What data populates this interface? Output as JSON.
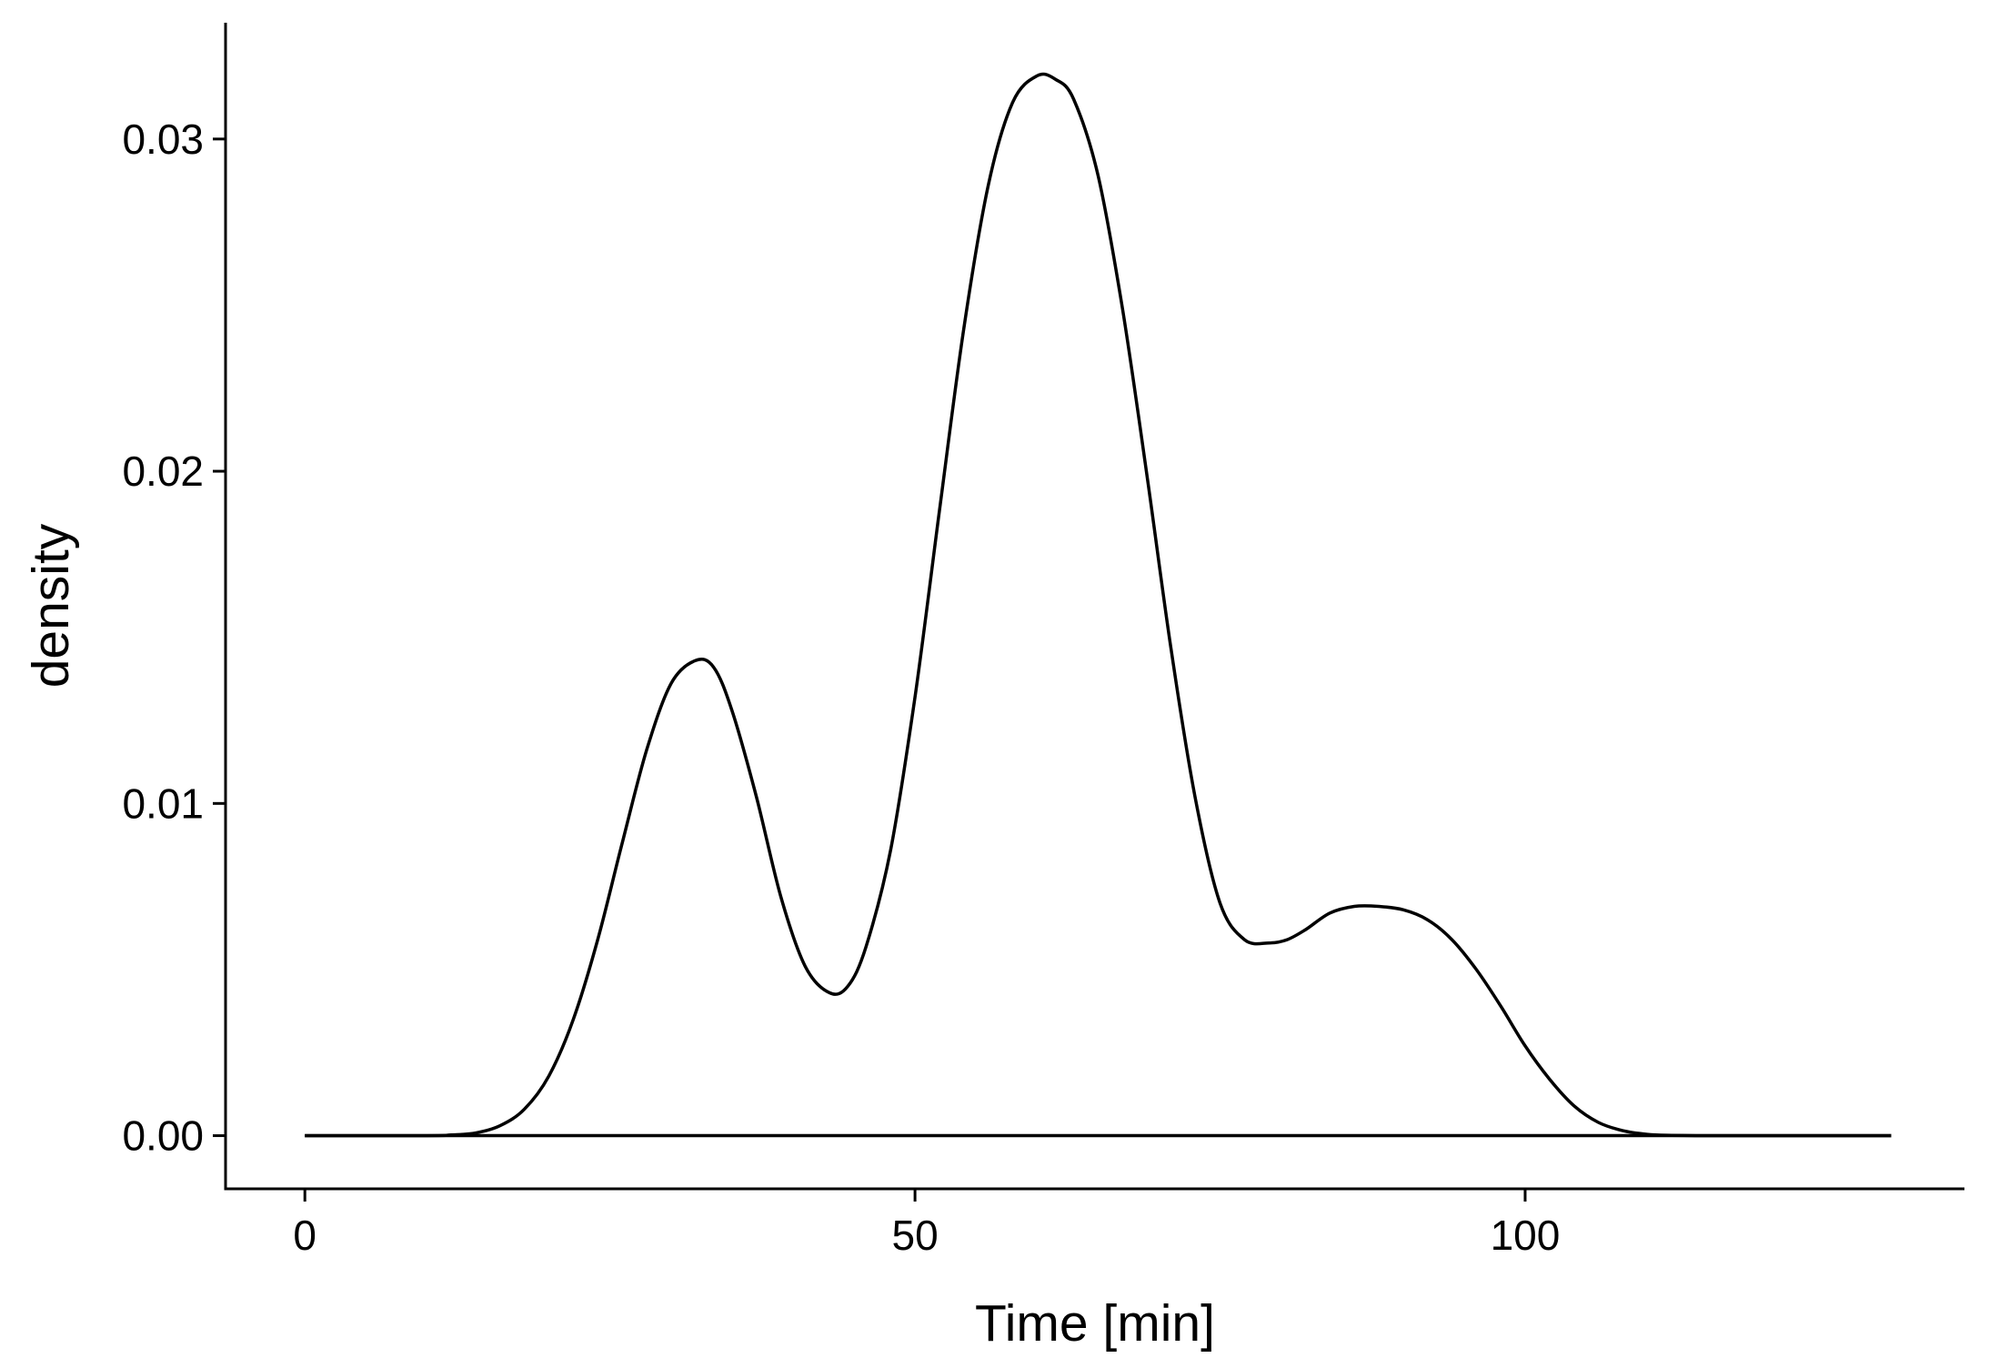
{
  "chart_data": {
    "type": "line",
    "title": "",
    "xlabel": "Time [min]",
    "ylabel": "density",
    "xlim": [
      -6.5,
      136
    ],
    "ylim": [
      -0.0016,
      0.0335
    ],
    "x_ticks": [
      {
        "value": 0,
        "label": "0"
      },
      {
        "value": 50,
        "label": "50"
      },
      {
        "value": 100,
        "label": "100"
      }
    ],
    "y_ticks": [
      {
        "value": 0.0,
        "label": "0.00"
      },
      {
        "value": 0.01,
        "label": "0.01"
      },
      {
        "value": 0.02,
        "label": "0.02"
      },
      {
        "value": 0.03,
        "label": "0.03"
      }
    ],
    "grid": false,
    "legend": "none",
    "line_color": "#000000",
    "series": [
      {
        "x": [
          0,
          10,
          12,
          14,
          16,
          18,
          20,
          22,
          24,
          26,
          28,
          30,
          32,
          33.5,
          35,
          37,
          39,
          41,
          43,
          44.5,
          46,
          48,
          50,
          52,
          54,
          56,
          58,
          60,
          61.5,
          63,
          65,
          67,
          69,
          71,
          73,
          75,
          77,
          79,
          80.5,
          82,
          84,
          86,
          88,
          90,
          92,
          94,
          96,
          98,
          100,
          102,
          104,
          106,
          108,
          110,
          112,
          114,
          116,
          120,
          130
        ],
        "y": [
          0.0,
          0.0,
          2e-05,
          8e-05,
          0.0003,
          0.0008,
          0.0018,
          0.0035,
          0.0059,
          0.0088,
          0.0116,
          0.0136,
          0.0143,
          0.0141,
          0.0128,
          0.0102,
          0.0072,
          0.0051,
          0.0043,
          0.0045,
          0.0057,
          0.0086,
          0.0132,
          0.0188,
          0.0243,
          0.0286,
          0.0311,
          0.0319,
          0.0318,
          0.0312,
          0.0289,
          0.0249,
          0.0199,
          0.0146,
          0.0101,
          0.007,
          0.0059,
          0.0058,
          0.0059,
          0.0062,
          0.0067,
          0.0069,
          0.0069,
          0.0068,
          0.0065,
          0.0059,
          0.005,
          0.0039,
          0.0027,
          0.0017,
          0.0009,
          0.0004,
          0.00015,
          4e-05,
          1e-05,
          0.0,
          0.0,
          0.0,
          0.0
        ]
      }
    ]
  }
}
